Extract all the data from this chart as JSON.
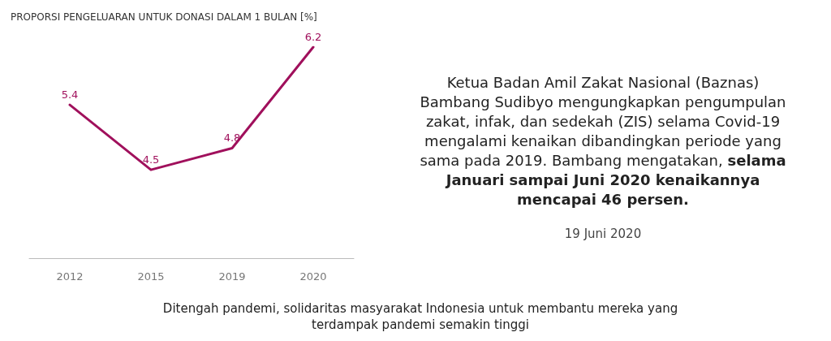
{
  "chart_data": {
    "type": "line",
    "title": "PROPORSI PENGELUARAN UNTUK DONASI DALAM 1 BULAN [%]",
    "categories": [
      "2012",
      "2015",
      "2019",
      "2020"
    ],
    "series": [
      {
        "color": "#a0105c",
        "values": [
          5.4,
          4.5,
          4.8,
          6.2
        ]
      }
    ],
    "data_labels": true,
    "grid": false,
    "marker": "none",
    "line_style": "solid",
    "tick_labels": "x",
    "annotations": [
      "Ketua Badan Amil Zakat Nasional (Baznas) Bambang Sudibyo mengungkapkan pengumpulan zakat, infak, dan sedekah (ZIS) selama  Covid-19 mengalami kenaikan dibandingkan periode yang sama pada 2019. Bambang mengatakan,",
      "selama Januari sampai Juni 2020 kenaikannya mencapai 46 persen.",
      "19 Juni 2020",
      "Ditengah pandemi, solidaritas masyarakat Indonesia untuk membantu mereka yang terdampak pandemi semakin tinggi"
    ]
  }
}
